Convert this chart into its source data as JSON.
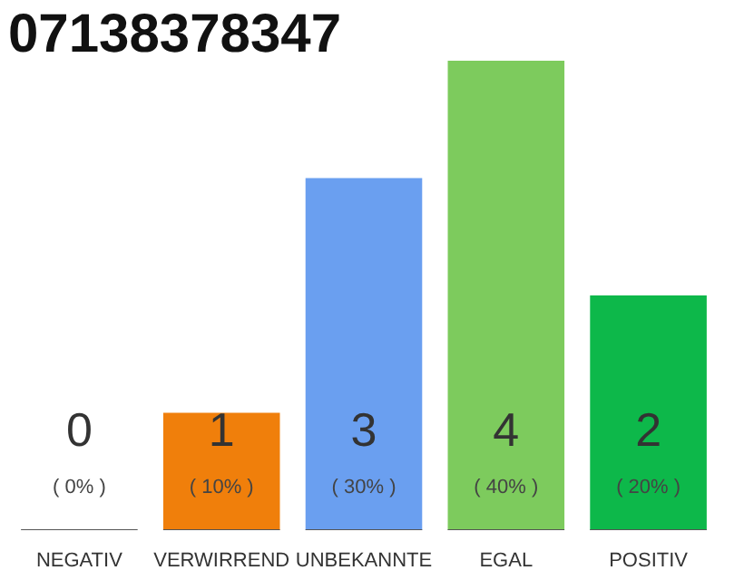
{
  "chart_data": {
    "type": "bar",
    "title": "07138378347",
    "categories": [
      "NEGATIV",
      "VERWIRREND",
      "UNBEKANNTE",
      "EGAL",
      "POSITIV"
    ],
    "values": [
      0,
      10,
      30,
      40,
      20
    ],
    "colors": [
      "#888888",
      "#f07f0b",
      "#6a9ff0",
      "#7dcb5d",
      "#0db84a"
    ],
    "value_labels": [
      "( 0% )",
      "( 10% )",
      "( 30% )",
      "( 40% )",
      "( 20% )"
    ],
    "annotations": [
      "0",
      "1",
      "3",
      "4",
      "2"
    ],
    "tick_labels": "x",
    "grid": false
  }
}
